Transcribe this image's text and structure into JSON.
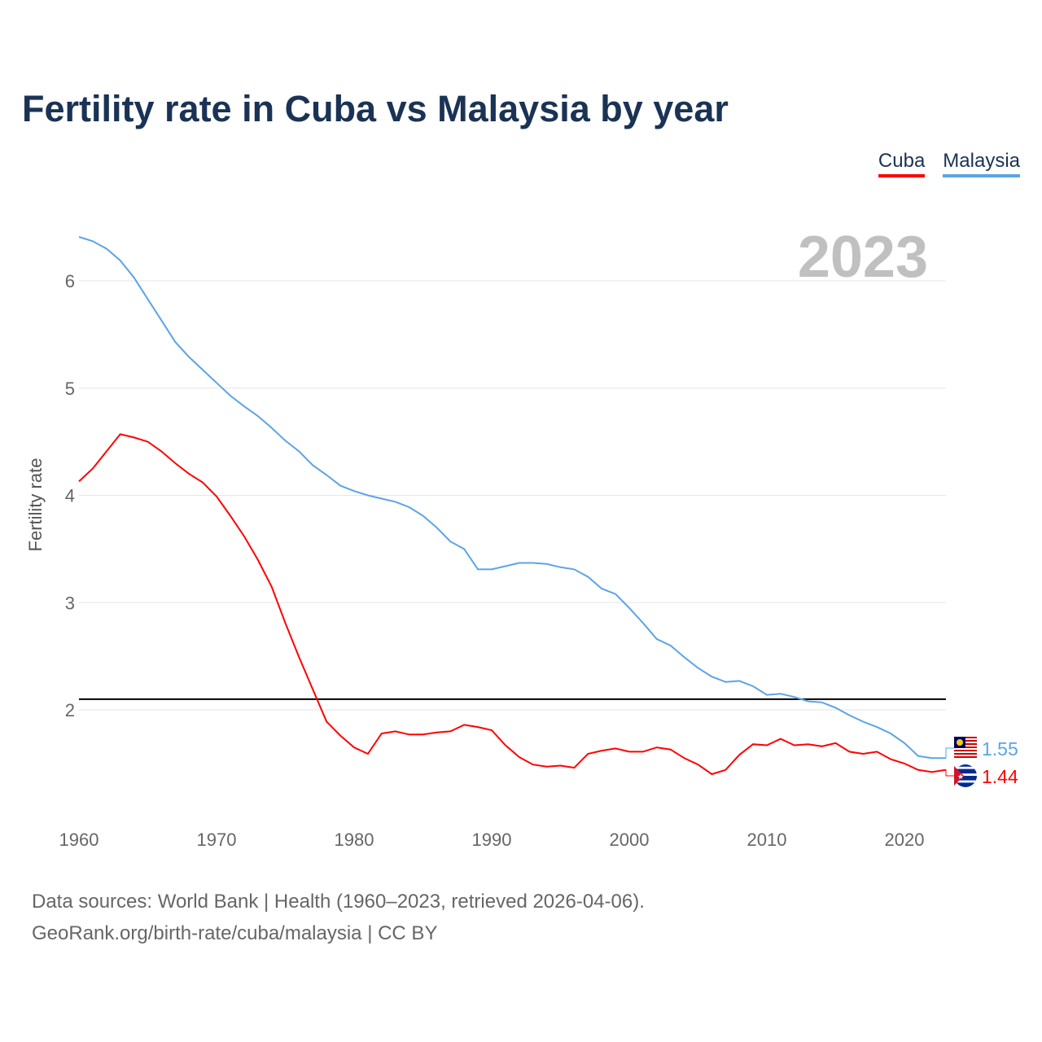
{
  "title": "Fertility rate in Cuba vs Malaysia by year",
  "source_line1": "Data sources: World Bank | Health (1960–2023, retrieved 2026-04-06).",
  "source_line2": "GeoRank.org/birth-rate/cuba/malaysia | CC BY",
  "chart_data": {
    "type": "line",
    "title": "Fertility rate in Cuba vs Malaysia by year",
    "ylabel": "Fertility rate",
    "xlabel": "",
    "xlim": [
      1960,
      2023
    ],
    "ylim": [
      1.0,
      6.6
    ],
    "x_ticks": [
      1960,
      1970,
      1980,
      1990,
      2000,
      2010,
      2020
    ],
    "y_ticks": [
      2,
      3,
      4,
      5,
      6
    ],
    "grid": true,
    "legend_position": "top-right",
    "year_label": "2023",
    "reference_line": 2.1,
    "series": [
      {
        "name": "Cuba",
        "color": "#ff0000",
        "end_label": "1.44",
        "values": [
          4.13,
          4.25,
          4.41,
          4.57,
          4.54,
          4.5,
          4.41,
          4.3,
          4.2,
          4.12,
          3.99,
          3.81,
          3.62,
          3.4,
          3.15,
          2.81,
          2.49,
          2.19,
          1.89,
          1.76,
          1.65,
          1.59,
          1.78,
          1.8,
          1.77,
          1.77,
          1.79,
          1.8,
          1.86,
          1.84,
          1.81,
          1.67,
          1.56,
          1.49,
          1.47,
          1.48,
          1.46,
          1.59,
          1.62,
          1.64,
          1.61,
          1.61,
          1.65,
          1.63,
          1.55,
          1.49,
          1.4,
          1.44,
          1.58,
          1.68,
          1.67,
          1.73,
          1.67,
          1.68,
          1.66,
          1.69,
          1.61,
          1.59,
          1.61,
          1.54,
          1.5,
          1.44,
          1.42,
          1.44
        ]
      },
      {
        "name": "Malaysia",
        "color": "#5ba4e6",
        "end_label": "1.55",
        "values": [
          6.41,
          6.37,
          6.3,
          6.19,
          6.03,
          5.83,
          5.63,
          5.43,
          5.29,
          5.17,
          5.05,
          4.93,
          4.83,
          4.74,
          4.63,
          4.51,
          4.41,
          4.28,
          4.19,
          4.09,
          4.04,
          4.0,
          3.97,
          3.94,
          3.89,
          3.81,
          3.7,
          3.57,
          3.5,
          3.31,
          3.31,
          3.34,
          3.37,
          3.37,
          3.36,
          3.33,
          3.31,
          3.24,
          3.13,
          3.08,
          2.95,
          2.81,
          2.66,
          2.6,
          2.49,
          2.39,
          2.31,
          2.26,
          2.27,
          2.22,
          2.14,
          2.15,
          2.12,
          2.08,
          2.07,
          2.02,
          1.95,
          1.89,
          1.84,
          1.78,
          1.69,
          1.57,
          1.55,
          1.55
        ]
      }
    ]
  }
}
